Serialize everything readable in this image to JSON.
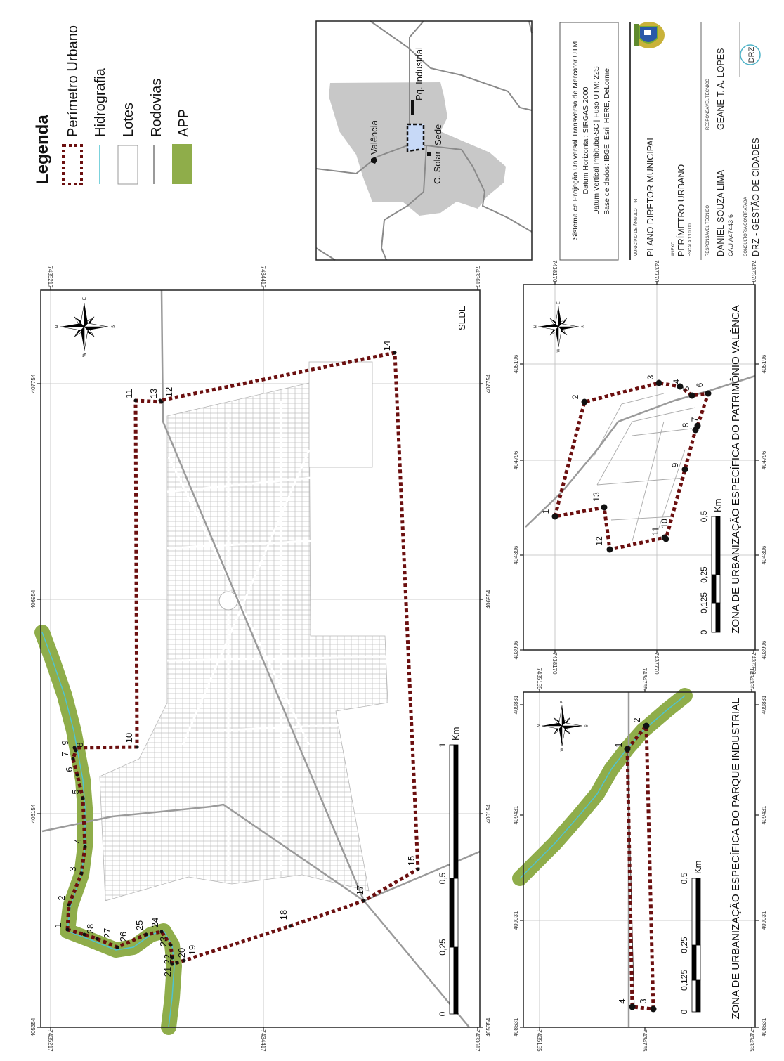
{
  "legend": {
    "title": "Legenda",
    "items": [
      {
        "label": "Perímetro Urbano",
        "symbol": "dotted-outline"
      },
      {
        "label": "Hidrografia",
        "symbol": "cyan-line"
      },
      {
        "label": "Lotes",
        "symbol": "white-polygon"
      },
      {
        "label": "Rodovias",
        "symbol": "gray-line"
      },
      {
        "label": "APP",
        "symbol": "green-fill"
      }
    ]
  },
  "colors": {
    "perimeter": "#6b0f0f",
    "hydrography": "#4fc3d0",
    "roads": "#9a9a9a",
    "app": "#8fad4a",
    "lots_outline": "#b5b5b5",
    "municipality": "#c8c8c8",
    "sede_area": "#c7d9f7"
  },
  "compass": {
    "n": "N",
    "e": "E",
    "s": "S",
    "w": "W"
  },
  "location_map": {
    "labels": {
      "valencia": "Valência",
      "pq_industrial": "Pq. Industrial",
      "sede": "Sede",
      "c_solar": "C. Solar"
    }
  },
  "title_block": {
    "projection": [
      "Sistema ce Projeção Universal Transversa de Mercator UTM",
      "Datum Horizontal: SIRGAS 2000",
      "Datum Vertical Imbituba-SC | Fuso UTM: 22S",
      "Base de dados: IBGE, Esri, HERE, DeLorme."
    ],
    "municipality_caption": "MUNICÍPIO DE ÂNGULO - PR",
    "plan_title": "PLANO DIRETOR MUNICIPAL",
    "annex_caption": "ANEXO I",
    "annex_title": "PERÍMETRO URBANO",
    "scale_caption": "ESCALA 1:10000",
    "responsible_1_caption": "RESPONSÁVEL TÉCNICO",
    "responsible_1_name": "DANIEL SOUZA LIMA",
    "responsible_1_reg": "CAU A47443-6",
    "responsible_2_caption": "RESPONSÁVEL TÉCNICO",
    "responsible_2_name": "GEANE T. A. LOPES",
    "consultancy_caption": "CONSULTORIA CONTRATADA",
    "consultancy_name": "DRZ - GESTÃO DE CIDADES",
    "consultancy_logo": "DRZ"
  },
  "main_map": {
    "label": "SEDE",
    "easting_ticks": [
      "7435217",
      "7434417",
      "7433617"
    ],
    "northing_ticks": [
      "407754",
      "406954",
      "406154",
      "405354"
    ],
    "vertex_labels": [
      "1",
      "2",
      "3",
      "4",
      "5",
      "6",
      "7",
      "8",
      "9",
      "10",
      "11",
      "12",
      "13",
      "14",
      "15",
      "17",
      "18",
      "19",
      "20",
      "21",
      "22",
      "23",
      "24",
      "25",
      "26",
      "27",
      "28"
    ],
    "scale": {
      "labels": [
        "0",
        "0,25",
        "0,5",
        "1"
      ],
      "unit": "Km"
    }
  },
  "valencia_map": {
    "title": "ZONA DE URBANIZAÇÃO ESPECÍFICA DO PATRIMÔNIO VALÊNCA",
    "easting_ticks": [
      "7438170",
      "7437770",
      "7437370"
    ],
    "northing_ticks": [
      "405196",
      "404796",
      "404396",
      "403996"
    ],
    "vertex_labels": [
      "1",
      "2",
      "3",
      "4",
      "5",
      "6",
      "7",
      "8",
      "9",
      "10",
      "11",
      "12",
      "13"
    ],
    "scale": {
      "labels": [
        "0",
        "0,125",
        "0,25",
        "0,5"
      ],
      "unit": "Km"
    }
  },
  "industrial_map": {
    "title": "ZONA DE URBANIZAÇÃO ESPECÍFICA DO PARQUE INDUSTRIAL",
    "easting_ticks": [
      "7435155",
      "7434755",
      "7434355"
    ],
    "northing_ticks": [
      "409831",
      "409431",
      "409031",
      "408631"
    ],
    "vertex_labels": [
      "1",
      "2",
      "3",
      "4"
    ],
    "scale": {
      "labels": [
        "0",
        "0,125",
        "0,25",
        "0,5"
      ],
      "unit": "Km"
    }
  }
}
